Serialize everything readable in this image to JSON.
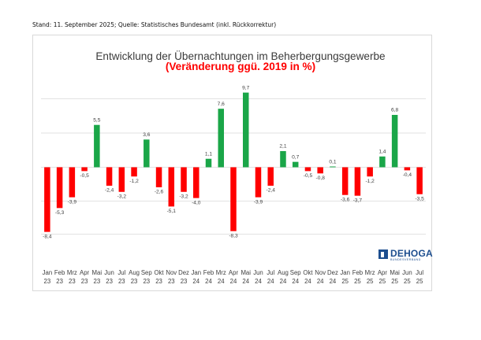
{
  "source_note": "Stand: 11. September 2025; Quelle: Statistisches Bundesamt (inkl. Rückkorrektur)",
  "logo": {
    "word": "DEHOGA",
    "sub": "BUNDESVERBAND",
    "icon": "dehoga-logo-icon"
  },
  "colors": {
    "positive": "#1aa648",
    "negative": "#ff0000",
    "grid": "#d9d9d9",
    "text": "#404040",
    "title": "#3a3a3a",
    "subtitle": "#ff0000"
  },
  "chart_data": {
    "type": "bar",
    "title": "Entwicklung der Übernachtungen im Beherbergungsgewerbe",
    "subtitle": "(Veränderung ggü. 2019 in %)",
    "xlabel": "",
    "ylabel": "",
    "ylim": [
      -10,
      12
    ],
    "grid": true,
    "legend": "none",
    "categories": [
      [
        "Jan",
        "23"
      ],
      [
        "Feb",
        "23"
      ],
      [
        "Mrz",
        "23"
      ],
      [
        "Apr",
        "23"
      ],
      [
        "Mai",
        "23"
      ],
      [
        "Jun",
        "23"
      ],
      [
        "Jul",
        "23"
      ],
      [
        "Aug",
        "23"
      ],
      [
        "Sep",
        "23"
      ],
      [
        "Okt",
        "23"
      ],
      [
        "Nov",
        "23"
      ],
      [
        "Dez",
        "23"
      ],
      [
        "Jan",
        "24"
      ],
      [
        "Feb",
        "24"
      ],
      [
        "Mrz",
        "24"
      ],
      [
        "Apr",
        "24"
      ],
      [
        "Mai",
        "24"
      ],
      [
        "Jun",
        "24"
      ],
      [
        "Jul",
        "24"
      ],
      [
        "Aug",
        "24"
      ],
      [
        "Sep",
        "24"
      ],
      [
        "Okt",
        "24"
      ],
      [
        "Nov",
        "24"
      ],
      [
        "Dez",
        "24"
      ],
      [
        "Jan",
        "25"
      ],
      [
        "Feb",
        "25"
      ],
      [
        "Mrz",
        "25"
      ],
      [
        "Apr",
        "25"
      ],
      [
        "Mai",
        "25"
      ],
      [
        "Jun",
        "25"
      ],
      [
        "Jul",
        "25"
      ]
    ],
    "values": [
      -8.4,
      -5.3,
      -3.9,
      -0.5,
      5.5,
      -2.4,
      -3.2,
      -1.2,
      3.6,
      -2.6,
      -5.1,
      -3.2,
      -4.0,
      1.1,
      7.6,
      -8.3,
      9.7,
      -3.9,
      -2.4,
      2.1,
      0.7,
      -0.5,
      -0.8,
      0.1,
      -3.6,
      -3.7,
      -1.2,
      1.4,
      6.8,
      -0.4,
      -3.5
    ],
    "labels": [
      "-8,4",
      "-5,3",
      "-3,9",
      "-0,5",
      "5,5",
      "-2,4",
      "-3,2",
      "-1,2",
      "3,6",
      "-2,6",
      "-5,1",
      "-3,2",
      "-4,0",
      "1,1",
      "7,6",
      "-8,3",
      "9,7",
      "-3,9",
      "-2,4",
      "2,1",
      "0,7",
      "-0,5",
      "-0,8",
      "0,1",
      "-3,6",
      "-3,7",
      "-1,2",
      "1,4",
      "6,8",
      "-0,4",
      "-3,5"
    ]
  }
}
